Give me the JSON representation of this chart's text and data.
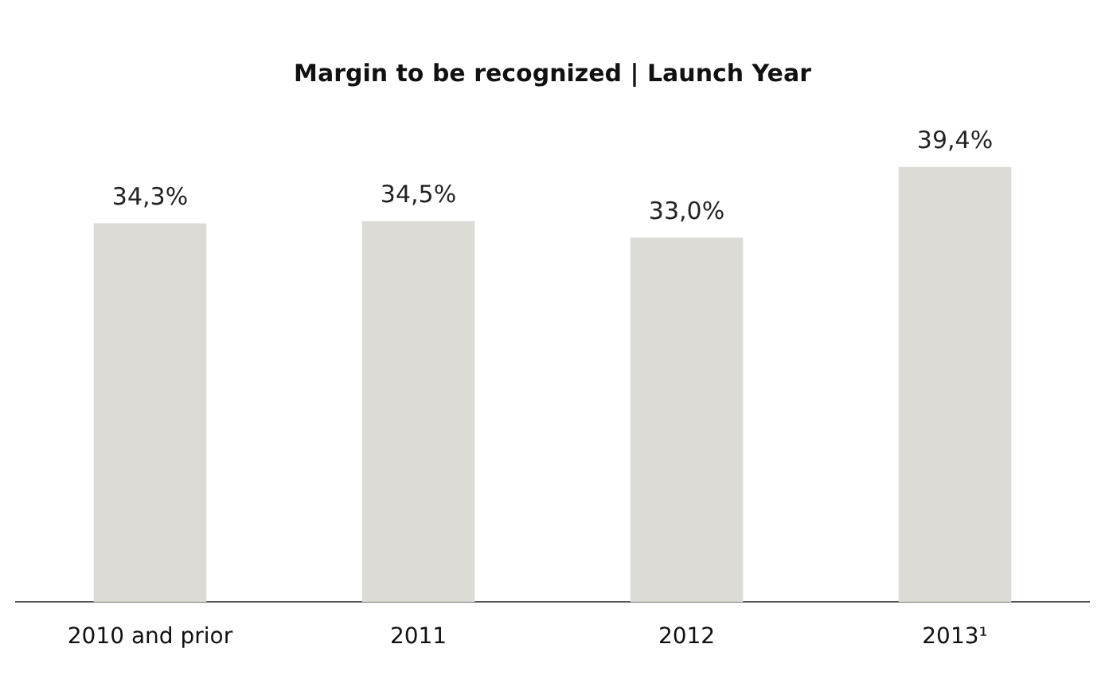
{
  "chart_data": {
    "type": "bar",
    "title": "Margin to be recognized | Launch Year",
    "categories": [
      "2010 and prior",
      "2011",
      "2012",
      "2013¹"
    ],
    "values": [
      34.3,
      34.5,
      33.0,
      39.4
    ],
    "value_labels": [
      "34,3%",
      "34,5%",
      "33,0%",
      "39,4%"
    ],
    "color": "#dddbd5",
    "grid": false,
    "legend": false,
    "tick_labels": "x"
  }
}
